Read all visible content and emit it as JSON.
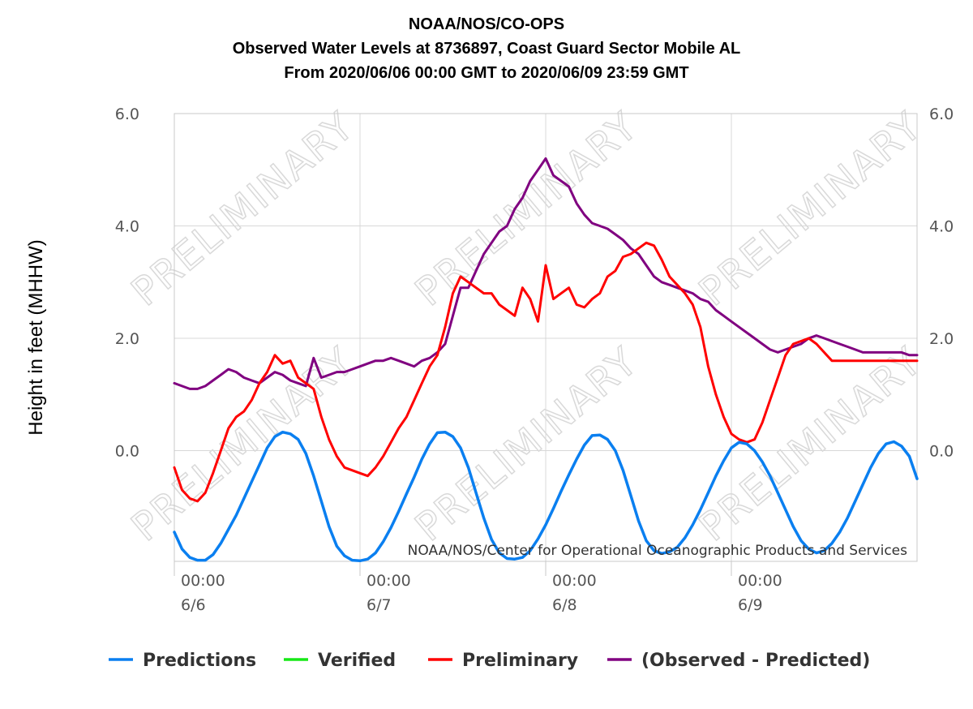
{
  "title_lines": [
    "NOAA/NOS/CO-OPS",
    "Observed Water Levels at 8736897, Coast Guard Sector Mobile AL",
    "From 2020/06/06 00:00 GMT to 2020/06/09 23:59 GMT"
  ],
  "credit": "NOAA/NOS/Center for Operational Oceanographic Products and Services",
  "watermark_text": "PRELIMINARY",
  "colors": {
    "predictions": "#0a7ff0",
    "verified": "#17e817",
    "preliminary": "#ff0000",
    "observed_minus_predicted": "#800080",
    "grid": "#d8d8d8",
    "axis": "#c8c8c8"
  },
  "chart_data": {
    "type": "line",
    "ylabel": "Height in feet (MHHW)",
    "xlabel": "",
    "ylim": [
      -1.97,
      6.0
    ],
    "xlim_hours": [
      0,
      96
    ],
    "y_ticks": [
      "6.0",
      "4.0",
      "2.0",
      "0.0"
    ],
    "y_tick_values": [
      6.0,
      4.0,
      2.0,
      0.0
    ],
    "x_ticks": [
      {
        "hour": 0,
        "time": "00:00",
        "date": "6/6"
      },
      {
        "hour": 24,
        "time": "00:00",
        "date": "6/7"
      },
      {
        "hour": 48,
        "time": "00:00",
        "date": "6/8"
      },
      {
        "hour": 72,
        "time": "00:00",
        "date": "6/9"
      }
    ],
    "grid": true,
    "legend_position": "bottom",
    "x_unit": "hours from 2020/06/06 00:00 GMT",
    "series": [
      {
        "name": "Predictions",
        "key": "predictions",
        "x": [
          0,
          1,
          2,
          3,
          4,
          5,
          6,
          7,
          8,
          9,
          10,
          11,
          12,
          13,
          14,
          15,
          16,
          17,
          18,
          19,
          20,
          21,
          22,
          23,
          24,
          25,
          26,
          27,
          28,
          29,
          30,
          31,
          32,
          33,
          34,
          35,
          36,
          37,
          38,
          39,
          40,
          41,
          42,
          43,
          44,
          45,
          46,
          47,
          48,
          49,
          50,
          51,
          52,
          53,
          54,
          55,
          56,
          57,
          58,
          59,
          60,
          61,
          62,
          63,
          64,
          65,
          66,
          67,
          68,
          69,
          70,
          71,
          72,
          73,
          74,
          75,
          76,
          77,
          78,
          79,
          80,
          81,
          82,
          83,
          84,
          85,
          86,
          87,
          88,
          89,
          90,
          91,
          92,
          93,
          94,
          95,
          96
        ],
        "values": [
          -1.45,
          -1.75,
          -1.9,
          -1.95,
          -1.95,
          -1.85,
          -1.65,
          -1.4,
          -1.15,
          -0.85,
          -0.55,
          -0.25,
          0.05,
          0.25,
          0.33,
          0.3,
          0.2,
          -0.05,
          -0.45,
          -0.9,
          -1.35,
          -1.7,
          -1.87,
          -1.95,
          -1.96,
          -1.93,
          -1.82,
          -1.62,
          -1.37,
          -1.08,
          -0.77,
          -0.47,
          -0.15,
          0.12,
          0.32,
          0.33,
          0.25,
          0.05,
          -0.3,
          -0.75,
          -1.2,
          -1.58,
          -1.82,
          -1.92,
          -1.93,
          -1.9,
          -1.78,
          -1.57,
          -1.32,
          -1.03,
          -0.72,
          -0.43,
          -0.15,
          0.1,
          0.27,
          0.28,
          0.2,
          0.0,
          -0.35,
          -0.8,
          -1.25,
          -1.6,
          -1.78,
          -1.83,
          -1.8,
          -1.72,
          -1.55,
          -1.32,
          -1.05,
          -0.75,
          -0.45,
          -0.18,
          0.05,
          0.15,
          0.12,
          0.0,
          -0.2,
          -0.45,
          -0.75,
          -1.05,
          -1.35,
          -1.6,
          -1.75,
          -1.82,
          -1.78,
          -1.65,
          -1.45,
          -1.2,
          -0.9,
          -0.6,
          -0.3,
          -0.05,
          0.12,
          0.16,
          0.08,
          -0.1,
          -0.5
        ]
      },
      {
        "name": "Verified",
        "key": "verified",
        "x": [],
        "values": []
      },
      {
        "name": "Preliminary",
        "key": "preliminary",
        "x": [
          0,
          1,
          2,
          3,
          4,
          5,
          6,
          7,
          8,
          9,
          10,
          11,
          12,
          13,
          14,
          15,
          16,
          17,
          18,
          19,
          20,
          21,
          22,
          23,
          24,
          25,
          26,
          27,
          28,
          29,
          30,
          31,
          32,
          33,
          34,
          35,
          36,
          37,
          38,
          39,
          40,
          41,
          42,
          43,
          44,
          45,
          46,
          47,
          48,
          49,
          50,
          51,
          52,
          53,
          54,
          55,
          56,
          57,
          58,
          59,
          60,
          61,
          62,
          63,
          64,
          65,
          66,
          67,
          68,
          69,
          70,
          71,
          72,
          73,
          74,
          75,
          76,
          77,
          78,
          79,
          80,
          81,
          82,
          83,
          84,
          85,
          86,
          87,
          88,
          89,
          90,
          91,
          92,
          93,
          94,
          95,
          96
        ],
        "values": [
          -0.3,
          -0.7,
          -0.85,
          -0.9,
          -0.75,
          -0.4,
          0.0,
          0.4,
          0.6,
          0.7,
          0.9,
          1.2,
          1.4,
          1.7,
          1.55,
          1.6,
          1.3,
          1.2,
          1.1,
          0.6,
          0.2,
          -0.1,
          -0.3,
          -0.35,
          -0.4,
          -0.45,
          -0.3,
          -0.1,
          0.15,
          0.4,
          0.6,
          0.9,
          1.2,
          1.5,
          1.7,
          2.2,
          2.8,
          3.1,
          3.0,
          2.9,
          2.8,
          2.8,
          2.6,
          2.5,
          2.4,
          2.9,
          2.7,
          2.3,
          3.3,
          2.7,
          2.8,
          2.9,
          2.6,
          2.55,
          2.7,
          2.8,
          3.1,
          3.2,
          3.45,
          3.5,
          3.6,
          3.7,
          3.65,
          3.4,
          3.1,
          2.95,
          2.8,
          2.6,
          2.2,
          1.5,
          1.0,
          0.6,
          0.3,
          0.2,
          0.15,
          0.2,
          0.5,
          0.9,
          1.3,
          1.7,
          1.9,
          1.95,
          2.0,
          1.9,
          1.75,
          1.6,
          1.6,
          1.6,
          1.6,
          1.6,
          1.6,
          1.6,
          1.6,
          1.6,
          1.6,
          1.6,
          1.6
        ]
      },
      {
        "name": "(Observed - Predicted)",
        "key": "observed_minus_predicted",
        "x": [
          0,
          1,
          2,
          3,
          4,
          5,
          6,
          7,
          8,
          9,
          10,
          11,
          12,
          13,
          14,
          15,
          16,
          17,
          18,
          19,
          20,
          21,
          22,
          23,
          24,
          25,
          26,
          27,
          28,
          29,
          30,
          31,
          32,
          33,
          34,
          35,
          36,
          37,
          38,
          39,
          40,
          41,
          42,
          43,
          44,
          45,
          46,
          47,
          48,
          49,
          50,
          51,
          52,
          53,
          54,
          55,
          56,
          57,
          58,
          59,
          60,
          61,
          62,
          63,
          64,
          65,
          66,
          67,
          68,
          69,
          70,
          71,
          72,
          73,
          74,
          75,
          76,
          77,
          78,
          79,
          80,
          81,
          82,
          83,
          84,
          85,
          86,
          87,
          88,
          89,
          90,
          91,
          92,
          93,
          94,
          95,
          96
        ],
        "values": [
          1.2,
          1.15,
          1.1,
          1.1,
          1.15,
          1.25,
          1.35,
          1.45,
          1.4,
          1.3,
          1.25,
          1.2,
          1.3,
          1.4,
          1.35,
          1.25,
          1.2,
          1.15,
          1.65,
          1.3,
          1.35,
          1.4,
          1.4,
          1.45,
          1.5,
          1.55,
          1.6,
          1.6,
          1.65,
          1.6,
          1.55,
          1.5,
          1.6,
          1.65,
          1.75,
          1.9,
          2.4,
          2.9,
          2.9,
          3.2,
          3.5,
          3.7,
          3.9,
          4.0,
          4.3,
          4.5,
          4.8,
          5.0,
          5.2,
          4.9,
          4.8,
          4.7,
          4.4,
          4.2,
          4.05,
          4.0,
          3.95,
          3.85,
          3.75,
          3.6,
          3.5,
          3.3,
          3.1,
          3.0,
          2.95,
          2.9,
          2.85,
          2.8,
          2.7,
          2.65,
          2.5,
          2.4,
          2.3,
          2.2,
          2.1,
          2.0,
          1.9,
          1.8,
          1.75,
          1.8,
          1.85,
          1.9,
          2.0,
          2.05,
          2.0,
          1.95,
          1.9,
          1.85,
          1.8,
          1.75,
          1.75,
          1.75,
          1.75,
          1.75,
          1.75,
          1.7,
          1.7
        ]
      }
    ]
  }
}
